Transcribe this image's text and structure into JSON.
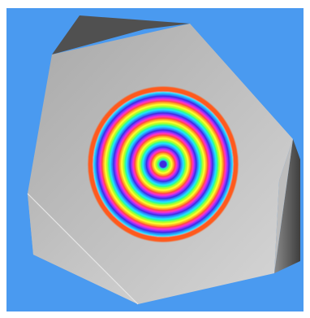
{
  "scene": {
    "background_color": "#4a9af0",
    "frame_color": "#ffffff",
    "object": "faceted-gray-solid",
    "face_colors": {
      "front_light": "#d6d6d6",
      "front_dark": "#a9a9a9",
      "bevel_light": "#c8c8c8",
      "shadow_top": "#505050",
      "shadow_right": "#4a4a4a"
    },
    "pattern": {
      "type": "concentric-rainbow-rings",
      "ring_count": 5,
      "outer_edge_color": "#ff5a1a",
      "center_color": "#3a2ae0",
      "palette": [
        "#3a2ae0",
        "#2c8cff",
        "#20e0ff",
        "#30ff80",
        "#b0ff20",
        "#ffff30",
        "#ffb020",
        "#ff4a3a",
        "#ff30c0",
        "#9030ff"
      ]
    }
  }
}
